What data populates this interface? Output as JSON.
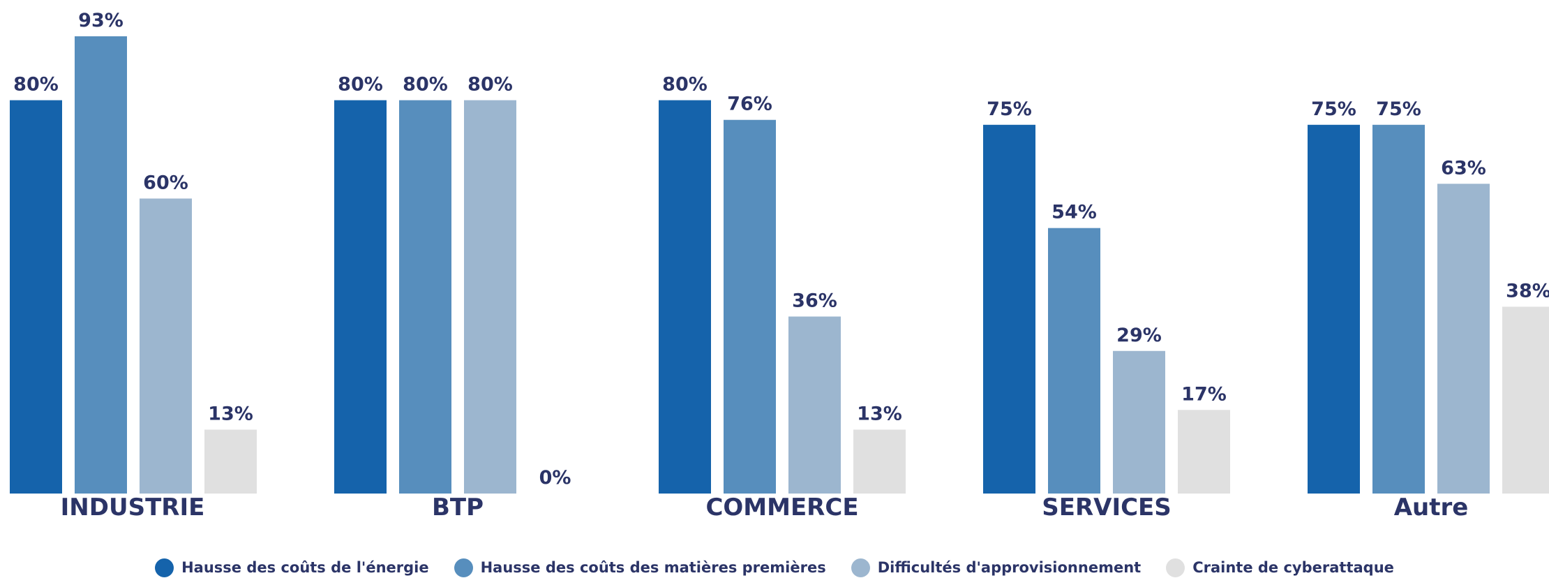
{
  "chart_data": {
    "type": "bar",
    "title": "",
    "xlabel": "",
    "ylabel": "",
    "ylim": [
      0,
      100
    ],
    "grid": false,
    "legend_position": "bottom",
    "categories": [
      "INDUSTRIE",
      "BTP",
      "COMMERCE",
      "SERVICES",
      "Autre"
    ],
    "series": [
      {
        "name": "Hausse des coûts de l'énergie",
        "color": "#1563ab",
        "values": [
          80,
          80,
          80,
          75,
          75
        ],
        "labels": [
          "80%",
          "80%",
          "80%",
          "75%",
          "75%"
        ]
      },
      {
        "name": "Hausse des coûts des matières premières",
        "color": "#578ebd",
        "values": [
          93,
          80,
          76,
          54,
          75
        ],
        "labels": [
          "93%",
          "80%",
          "76%",
          "54%",
          "75%"
        ]
      },
      {
        "name": "Difficultés d'approvisionnement",
        "color": "#9cb6cf",
        "values": [
          60,
          80,
          36,
          29,
          63
        ],
        "labels": [
          "60%",
          "80%",
          "36%",
          "29%",
          "63%"
        ]
      },
      {
        "name": "Crainte de cyberattaque",
        "color": "#e0e0e0",
        "values": [
          13,
          0,
          13,
          17,
          38
        ],
        "labels": [
          "13%",
          "0%",
          "13%",
          "17%",
          "38%"
        ]
      }
    ]
  }
}
